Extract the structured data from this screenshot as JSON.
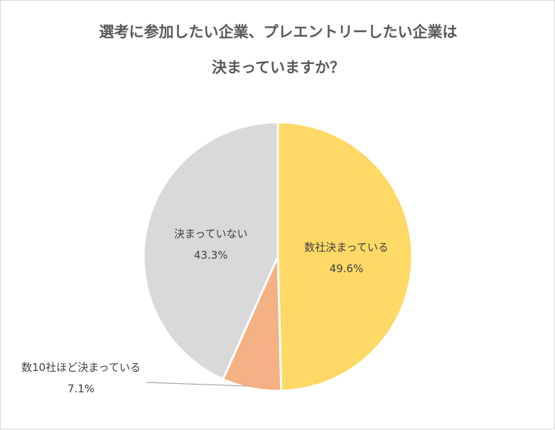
{
  "title": {
    "line1": "選考に参加したい企業、プレエントリーしたい企業は",
    "line2": "決まっていますか？"
  },
  "chart_data": {
    "type": "pie",
    "title": "選考に参加したい企業、プレエントリーしたい企業は決まっていますか？",
    "slices": [
      {
        "label": "数社決まっている",
        "value": 49.6,
        "value_label": "49.6%",
        "color": "#FFD966"
      },
      {
        "label": "数10社ほど決まっている",
        "value": 7.1,
        "value_label": "7.1%",
        "color": "#F4B183"
      },
      {
        "label": "決まっていない",
        "value": 43.3,
        "value_label": "43.3%",
        "color": "#D9D9D9"
      }
    ],
    "start_angle": "12 o'clock",
    "direction": "clockwise",
    "legend": "none",
    "data_labels": "category name and percentage"
  }
}
